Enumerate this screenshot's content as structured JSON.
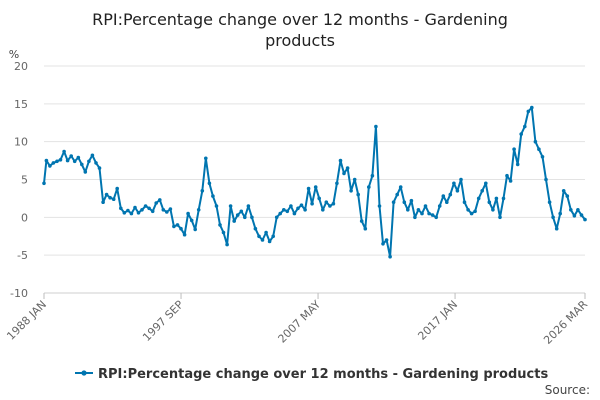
{
  "chart_data": {
    "type": "line",
    "title_lines": [
      "RPI:Percentage change over 12 months - Gardening",
      "products"
    ],
    "ylabel": "%",
    "ylim": [
      -10,
      20
    ],
    "y_ticks": [
      -10,
      -5,
      0,
      5,
      10,
      15,
      20
    ],
    "x_ticks": [
      "1988 JAN",
      "1997 SEP",
      "2007 MAY",
      "2017 JAN",
      "2026 MAR"
    ],
    "x_range": [
      "1988 JAN",
      "2026 MAR"
    ],
    "grid": true,
    "legend_position": "bottom",
    "series": [
      {
        "name": "RPI:Percentage change over 12 months - Gardening products",
        "color": "#0075b0",
        "points": [
          [
            "1988-01",
            4.5
          ],
          [
            "1988-03",
            7.5
          ],
          [
            "1988-06",
            6.8
          ],
          [
            "1988-09",
            7.2
          ],
          [
            "1988-12",
            7.4
          ],
          [
            "1989-03",
            7.6
          ],
          [
            "1989-06",
            8.7
          ],
          [
            "1989-09",
            7.5
          ],
          [
            "1989-12",
            8.1
          ],
          [
            "1990-03",
            7.4
          ],
          [
            "1990-06",
            7.9
          ],
          [
            "1990-09",
            7.0
          ],
          [
            "1990-12",
            6.0
          ],
          [
            "1991-03",
            7.4
          ],
          [
            "1991-06",
            8.2
          ],
          [
            "1991-09",
            7.2
          ],
          [
            "1991-12",
            6.5
          ],
          [
            "1992-03",
            2.0
          ],
          [
            "1992-06",
            3.0
          ],
          [
            "1992-09",
            2.6
          ],
          [
            "1992-12",
            2.4
          ],
          [
            "1993-03",
            3.8
          ],
          [
            "1993-06",
            1.2
          ],
          [
            "1993-09",
            0.6
          ],
          [
            "1993-12",
            0.9
          ],
          [
            "1994-03",
            0.5
          ],
          [
            "1994-06",
            1.3
          ],
          [
            "1994-09",
            0.6
          ],
          [
            "1994-12",
            1.0
          ],
          [
            "1995-03",
            1.5
          ],
          [
            "1995-06",
            1.2
          ],
          [
            "1995-09",
            0.8
          ],
          [
            "1995-12",
            1.9
          ],
          [
            "1996-03",
            2.3
          ],
          [
            "1996-06",
            1.0
          ],
          [
            "1996-09",
            0.7
          ],
          [
            "1996-12",
            1.1
          ],
          [
            "1997-03",
            -1.2
          ],
          [
            "1997-06",
            -1.0
          ],
          [
            "1997-09",
            -1.5
          ],
          [
            "1997-12",
            -2.3
          ],
          [
            "1998-03",
            0.5
          ],
          [
            "1998-06",
            -0.4
          ],
          [
            "1998-09",
            -1.6
          ],
          [
            "1998-12",
            1.0
          ],
          [
            "1999-03",
            3.5
          ],
          [
            "1999-06",
            7.8
          ],
          [
            "1999-09",
            4.5
          ],
          [
            "1999-12",
            2.8
          ],
          [
            "2000-03",
            1.5
          ],
          [
            "2000-06",
            -1.0
          ],
          [
            "2000-09",
            -2.0
          ],
          [
            "2000-12",
            -3.6
          ],
          [
            "2001-03",
            1.5
          ],
          [
            "2001-06",
            -0.5
          ],
          [
            "2001-09",
            0.3
          ],
          [
            "2001-12",
            0.8
          ],
          [
            "2002-03",
            0.0
          ],
          [
            "2002-06",
            1.5
          ],
          [
            "2002-09",
            0.0
          ],
          [
            "2002-12",
            -1.5
          ],
          [
            "2003-03",
            -2.5
          ],
          [
            "2003-06",
            -3.0
          ],
          [
            "2003-09",
            -2.0
          ],
          [
            "2003-12",
            -3.2
          ],
          [
            "2004-03",
            -2.5
          ],
          [
            "2004-06",
            0.0
          ],
          [
            "2004-09",
            0.5
          ],
          [
            "2004-12",
            1.0
          ],
          [
            "2005-03",
            0.8
          ],
          [
            "2005-06",
            1.5
          ],
          [
            "2005-09",
            0.5
          ],
          [
            "2005-12",
            1.2
          ],
          [
            "2006-03",
            1.6
          ],
          [
            "2006-06",
            1.0
          ],
          [
            "2006-09",
            3.8
          ],
          [
            "2006-12",
            1.8
          ],
          [
            "2007-03",
            4.0
          ],
          [
            "2007-06",
            2.5
          ],
          [
            "2007-09",
            1.0
          ],
          [
            "2007-12",
            2.0
          ],
          [
            "2008-03",
            1.5
          ],
          [
            "2008-06",
            1.8
          ],
          [
            "2008-09",
            4.5
          ],
          [
            "2008-12",
            7.5
          ],
          [
            "2009-03",
            5.8
          ],
          [
            "2009-06",
            6.5
          ],
          [
            "2009-09",
            3.5
          ],
          [
            "2009-12",
            5.0
          ],
          [
            "2010-03",
            3.0
          ],
          [
            "2010-06",
            -0.5
          ],
          [
            "2010-09",
            -1.5
          ],
          [
            "2010-12",
            4.0
          ],
          [
            "2011-03",
            5.5
          ],
          [
            "2011-06",
            12.0
          ],
          [
            "2011-09",
            1.5
          ],
          [
            "2011-12",
            -3.5
          ],
          [
            "2012-03",
            -3.0
          ],
          [
            "2012-06",
            -5.2
          ],
          [
            "2012-09",
            2.0
          ],
          [
            "2012-12",
            3.0
          ],
          [
            "2013-03",
            4.0
          ],
          [
            "2013-06",
            2.0
          ],
          [
            "2013-09",
            1.0
          ],
          [
            "2013-12",
            2.2
          ],
          [
            "2014-03",
            0.0
          ],
          [
            "2014-06",
            1.0
          ],
          [
            "2014-09",
            0.5
          ],
          [
            "2014-12",
            1.5
          ],
          [
            "2015-03",
            0.5
          ],
          [
            "2015-06",
            0.3
          ],
          [
            "2015-09",
            0.0
          ],
          [
            "2015-12",
            1.5
          ],
          [
            "2016-03",
            2.8
          ],
          [
            "2016-06",
            2.0
          ],
          [
            "2016-09",
            3.0
          ],
          [
            "2016-12",
            4.5
          ],
          [
            "2017-03",
            3.5
          ],
          [
            "2017-06",
            5.0
          ],
          [
            "2017-09",
            2.0
          ],
          [
            "2017-12",
            1.0
          ],
          [
            "2018-03",
            0.5
          ],
          [
            "2018-06",
            0.8
          ],
          [
            "2018-09",
            2.5
          ],
          [
            "2018-12",
            3.5
          ],
          [
            "2019-03",
            4.5
          ],
          [
            "2019-06",
            2.0
          ],
          [
            "2019-09",
            1.0
          ],
          [
            "2019-12",
            2.5
          ],
          [
            "2020-03",
            0.0
          ],
          [
            "2020-06",
            2.5
          ],
          [
            "2020-09",
            5.5
          ],
          [
            "2020-12",
            4.8
          ],
          [
            "2021-03",
            9.0
          ],
          [
            "2021-06",
            7.0
          ],
          [
            "2021-09",
            11.0
          ],
          [
            "2021-12",
            12.0
          ],
          [
            "2022-03",
            14.0
          ],
          [
            "2022-06",
            14.5
          ],
          [
            "2022-09",
            10.0
          ],
          [
            "2022-12",
            9.0
          ],
          [
            "2023-03",
            8.0
          ],
          [
            "2023-06",
            5.0
          ],
          [
            "2023-09",
            2.0
          ],
          [
            "2023-12",
            0.0
          ],
          [
            "2024-03",
            -1.5
          ],
          [
            "2024-06",
            0.5
          ],
          [
            "2024-09",
            3.5
          ],
          [
            "2024-12",
            2.8
          ],
          [
            "2025-03",
            1.0
          ],
          [
            "2025-06",
            0.2
          ],
          [
            "2025-09",
            1.0
          ],
          [
            "2025-12",
            0.3
          ],
          [
            "2026-03",
            -0.3
          ]
        ]
      }
    ]
  },
  "legend": {
    "label": "RPI:Percentage change over 12 months - Gardening products"
  },
  "source": {
    "label": "Source:"
  }
}
